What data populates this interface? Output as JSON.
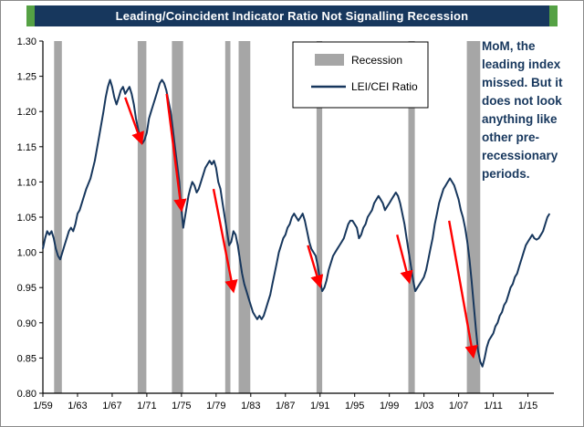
{
  "title": "Leading/Coincident Indicator Ratio Not Signalling Recession",
  "colors": {
    "title_bg": "#17375D",
    "title_accent": "#55A144",
    "title_text": "#FFFFFF",
    "line": "#17375D",
    "recession": "#A6A6A6",
    "arrow": "#FF0000",
    "axis": "#000000",
    "annotation_text": "#17375D"
  },
  "annotation": {
    "text": "MoM, the leading index missed. But it does not look anything like other pre-recessionary periods.",
    "lines": [
      "MoM, the",
      "leading index",
      "missed. But it",
      "does not look",
      "anything like",
      "other pre-",
      "recessionary",
      "periods."
    ]
  },
  "chart_data": {
    "type": "line",
    "title": "Leading/Coincident Indicator Ratio Not Signalling Recession",
    "xlabel": "",
    "ylabel": "",
    "xlim": [
      1959,
      2018
    ],
    "ylim": [
      0.8,
      1.3
    ],
    "grid": false,
    "legend_position": "upper center",
    "y_ticks": [
      0.8,
      0.85,
      0.9,
      0.95,
      1.0,
      1.05,
      1.1,
      1.15,
      1.2,
      1.25,
      1.3
    ],
    "x_ticks": [
      [
        1959,
        "1/59"
      ],
      [
        1963,
        "1/63"
      ],
      [
        1967,
        "1/67"
      ],
      [
        1971,
        "1/71"
      ],
      [
        1975,
        "1/75"
      ],
      [
        1979,
        "1/79"
      ],
      [
        1983,
        "1/83"
      ],
      [
        1987,
        "1/87"
      ],
      [
        1991,
        "1/91"
      ],
      [
        1995,
        "1/95"
      ],
      [
        1999,
        "1/99"
      ],
      [
        2003,
        "1/03"
      ],
      [
        2007,
        "1/07"
      ],
      [
        2011,
        "1/11"
      ],
      [
        2015,
        "1/15"
      ]
    ],
    "legend": [
      {
        "label": "Recession",
        "type": "area",
        "color": "#A6A6A6"
      },
      {
        "label": "LEI/CEI Ratio",
        "type": "line",
        "color": "#17375D"
      }
    ],
    "recessions": [
      [
        1960.3,
        1961.2
      ],
      [
        1969.95,
        1970.95
      ],
      [
        1973.9,
        1975.2
      ],
      [
        1980.05,
        1980.65
      ],
      [
        1981.6,
        1982.95
      ],
      [
        1990.6,
        1991.25
      ],
      [
        2001.2,
        2001.95
      ],
      [
        2007.95,
        2009.5
      ]
    ],
    "arrows": [
      {
        "from": [
          1968.5,
          1.22
        ],
        "to": [
          1970.4,
          1.155
        ]
      },
      {
        "from": [
          1973.3,
          1.225
        ],
        "to": [
          1975.0,
          1.06
        ]
      },
      {
        "from": [
          1978.7,
          1.09
        ],
        "to": [
          1981.0,
          0.945
        ]
      },
      {
        "from": [
          1989.6,
          1.01
        ],
        "to": [
          1991.0,
          0.952
        ]
      },
      {
        "from": [
          1999.9,
          1.025
        ],
        "to": [
          2001.3,
          0.958
        ]
      },
      {
        "from": [
          2005.9,
          1.045
        ],
        "to": [
          2008.7,
          0.852
        ]
      }
    ],
    "series": [
      {
        "name": "LEI/CEI Ratio",
        "points": [
          [
            1959.0,
            1.005
          ],
          [
            1959.25,
            1.02
          ],
          [
            1959.5,
            1.03
          ],
          [
            1959.75,
            1.025
          ],
          [
            1960.0,
            1.03
          ],
          [
            1960.25,
            1.02
          ],
          [
            1960.5,
            1.005
          ],
          [
            1960.75,
            0.995
          ],
          [
            1961.0,
            0.99
          ],
          [
            1961.25,
            1.0
          ],
          [
            1961.5,
            1.01
          ],
          [
            1961.75,
            1.02
          ],
          [
            1962.0,
            1.03
          ],
          [
            1962.25,
            1.035
          ],
          [
            1962.5,
            1.03
          ],
          [
            1962.75,
            1.04
          ],
          [
            1963.0,
            1.055
          ],
          [
            1963.25,
            1.06
          ],
          [
            1963.5,
            1.07
          ],
          [
            1964.0,
            1.09
          ],
          [
            1964.5,
            1.105
          ],
          [
            1965.0,
            1.13
          ],
          [
            1965.5,
            1.165
          ],
          [
            1966.0,
            1.2
          ],
          [
            1966.25,
            1.22
          ],
          [
            1966.5,
            1.235
          ],
          [
            1966.75,
            1.245
          ],
          [
            1967.0,
            1.235
          ],
          [
            1967.25,
            1.22
          ],
          [
            1967.5,
            1.21
          ],
          [
            1967.75,
            1.22
          ],
          [
            1968.0,
            1.23
          ],
          [
            1968.25,
            1.235
          ],
          [
            1968.5,
            1.225
          ],
          [
            1968.75,
            1.23
          ],
          [
            1969.0,
            1.235
          ],
          [
            1969.25,
            1.225
          ],
          [
            1969.5,
            1.21
          ],
          [
            1969.75,
            1.19
          ],
          [
            1970.0,
            1.175
          ],
          [
            1970.25,
            1.16
          ],
          [
            1970.5,
            1.155
          ],
          [
            1970.75,
            1.16
          ],
          [
            1971.0,
            1.17
          ],
          [
            1971.25,
            1.19
          ],
          [
            1971.5,
            1.2
          ],
          [
            1971.75,
            1.21
          ],
          [
            1972.0,
            1.22
          ],
          [
            1972.25,
            1.23
          ],
          [
            1972.5,
            1.24
          ],
          [
            1972.75,
            1.245
          ],
          [
            1973.0,
            1.24
          ],
          [
            1973.25,
            1.23
          ],
          [
            1973.5,
            1.215
          ],
          [
            1973.75,
            1.2
          ],
          [
            1974.0,
            1.175
          ],
          [
            1974.25,
            1.15
          ],
          [
            1974.5,
            1.125
          ],
          [
            1974.75,
            1.1
          ],
          [
            1975.0,
            1.06
          ],
          [
            1975.2,
            1.035
          ],
          [
            1975.4,
            1.05
          ],
          [
            1975.6,
            1.065
          ],
          [
            1975.8,
            1.08
          ],
          [
            1976.0,
            1.09
          ],
          [
            1976.25,
            1.1
          ],
          [
            1976.5,
            1.095
          ],
          [
            1976.75,
            1.085
          ],
          [
            1977.0,
            1.09
          ],
          [
            1977.25,
            1.1
          ],
          [
            1977.5,
            1.11
          ],
          [
            1977.75,
            1.12
          ],
          [
            1978.0,
            1.125
          ],
          [
            1978.25,
            1.13
          ],
          [
            1978.5,
            1.125
          ],
          [
            1978.75,
            1.13
          ],
          [
            1979.0,
            1.12
          ],
          [
            1979.25,
            1.1
          ],
          [
            1979.5,
            1.09
          ],
          [
            1979.75,
            1.07
          ],
          [
            1980.0,
            1.05
          ],
          [
            1980.25,
            1.03
          ],
          [
            1980.5,
            1.01
          ],
          [
            1980.75,
            1.015
          ],
          [
            1981.0,
            1.03
          ],
          [
            1981.25,
            1.025
          ],
          [
            1981.5,
            1.01
          ],
          [
            1981.75,
            0.99
          ],
          [
            1982.0,
            0.97
          ],
          [
            1982.25,
            0.955
          ],
          [
            1982.5,
            0.945
          ],
          [
            1982.75,
            0.935
          ],
          [
            1983.0,
            0.925
          ],
          [
            1983.25,
            0.915
          ],
          [
            1983.5,
            0.91
          ],
          [
            1983.75,
            0.905
          ],
          [
            1984.0,
            0.91
          ],
          [
            1984.25,
            0.905
          ],
          [
            1984.5,
            0.91
          ],
          [
            1984.75,
            0.92
          ],
          [
            1985.0,
            0.93
          ],
          [
            1985.25,
            0.94
          ],
          [
            1985.5,
            0.955
          ],
          [
            1985.75,
            0.97
          ],
          [
            1986.0,
            0.985
          ],
          [
            1986.25,
            1.0
          ],
          [
            1986.5,
            1.01
          ],
          [
            1986.75,
            1.02
          ],
          [
            1987.0,
            1.025
          ],
          [
            1987.25,
            1.035
          ],
          [
            1987.5,
            1.04
          ],
          [
            1987.75,
            1.05
          ],
          [
            1988.0,
            1.055
          ],
          [
            1988.25,
            1.05
          ],
          [
            1988.5,
            1.045
          ],
          [
            1988.75,
            1.05
          ],
          [
            1989.0,
            1.055
          ],
          [
            1989.25,
            1.045
          ],
          [
            1989.5,
            1.03
          ],
          [
            1989.75,
            1.015
          ],
          [
            1990.0,
            1.005
          ],
          [
            1990.25,
            1.0
          ],
          [
            1990.5,
            0.995
          ],
          [
            1990.75,
            0.98
          ],
          [
            1991.0,
            0.96
          ],
          [
            1991.25,
            0.945
          ],
          [
            1991.5,
            0.95
          ],
          [
            1991.75,
            0.96
          ],
          [
            1992.0,
            0.975
          ],
          [
            1992.25,
            0.985
          ],
          [
            1992.5,
            0.995
          ],
          [
            1992.75,
            1.0
          ],
          [
            1993.0,
            1.005
          ],
          [
            1993.25,
            1.01
          ],
          [
            1993.5,
            1.015
          ],
          [
            1993.75,
            1.02
          ],
          [
            1994.0,
            1.03
          ],
          [
            1994.25,
            1.04
          ],
          [
            1994.5,
            1.045
          ],
          [
            1994.75,
            1.045
          ],
          [
            1995.0,
            1.04
          ],
          [
            1995.25,
            1.035
          ],
          [
            1995.5,
            1.02
          ],
          [
            1995.75,
            1.025
          ],
          [
            1996.0,
            1.035
          ],
          [
            1996.25,
            1.04
          ],
          [
            1996.5,
            1.05
          ],
          [
            1996.75,
            1.055
          ],
          [
            1997.0,
            1.06
          ],
          [
            1997.25,
            1.07
          ],
          [
            1997.5,
            1.075
          ],
          [
            1997.75,
            1.08
          ],
          [
            1998.0,
            1.075
          ],
          [
            1998.25,
            1.07
          ],
          [
            1998.5,
            1.06
          ],
          [
            1998.75,
            1.065
          ],
          [
            1999.0,
            1.07
          ],
          [
            1999.25,
            1.075
          ],
          [
            1999.5,
            1.08
          ],
          [
            1999.75,
            1.085
          ],
          [
            2000.0,
            1.08
          ],
          [
            2000.25,
            1.07
          ],
          [
            2000.5,
            1.055
          ],
          [
            2000.75,
            1.04
          ],
          [
            2001.0,
            1.02
          ],
          [
            2001.25,
            1.0
          ],
          [
            2001.5,
            0.98
          ],
          [
            2001.75,
            0.96
          ],
          [
            2002.0,
            0.945
          ],
          [
            2002.25,
            0.95
          ],
          [
            2002.5,
            0.955
          ],
          [
            2002.75,
            0.96
          ],
          [
            2003.0,
            0.965
          ],
          [
            2003.25,
            0.975
          ],
          [
            2003.5,
            0.99
          ],
          [
            2003.75,
            1.005
          ],
          [
            2004.0,
            1.02
          ],
          [
            2004.25,
            1.04
          ],
          [
            2004.5,
            1.055
          ],
          [
            2004.75,
            1.07
          ],
          [
            2005.0,
            1.08
          ],
          [
            2005.25,
            1.09
          ],
          [
            2005.5,
            1.095
          ],
          [
            2005.75,
            1.1
          ],
          [
            2006.0,
            1.105
          ],
          [
            2006.25,
            1.1
          ],
          [
            2006.5,
            1.095
          ],
          [
            2006.75,
            1.085
          ],
          [
            2007.0,
            1.075
          ],
          [
            2007.25,
            1.06
          ],
          [
            2007.5,
            1.05
          ],
          [
            2007.75,
            1.035
          ],
          [
            2008.0,
            1.015
          ],
          [
            2008.25,
            0.99
          ],
          [
            2008.5,
            0.96
          ],
          [
            2008.75,
            0.925
          ],
          [
            2009.0,
            0.89
          ],
          [
            2009.25,
            0.86
          ],
          [
            2009.5,
            0.845
          ],
          [
            2009.75,
            0.838
          ],
          [
            2010.0,
            0.85
          ],
          [
            2010.25,
            0.865
          ],
          [
            2010.5,
            0.875
          ],
          [
            2010.75,
            0.88
          ],
          [
            2011.0,
            0.885
          ],
          [
            2011.25,
            0.895
          ],
          [
            2011.5,
            0.9
          ],
          [
            2011.75,
            0.91
          ],
          [
            2012.0,
            0.915
          ],
          [
            2012.25,
            0.925
          ],
          [
            2012.5,
            0.93
          ],
          [
            2012.75,
            0.94
          ],
          [
            2013.0,
            0.95
          ],
          [
            2013.25,
            0.955
          ],
          [
            2013.5,
            0.965
          ],
          [
            2013.75,
            0.97
          ],
          [
            2014.0,
            0.98
          ],
          [
            2014.25,
            0.99
          ],
          [
            2014.5,
            1.0
          ],
          [
            2014.75,
            1.01
          ],
          [
            2015.0,
            1.015
          ],
          [
            2015.25,
            1.02
          ],
          [
            2015.5,
            1.025
          ],
          [
            2015.75,
            1.02
          ],
          [
            2016.0,
            1.018
          ],
          [
            2016.25,
            1.02
          ],
          [
            2016.5,
            1.025
          ],
          [
            2016.75,
            1.03
          ],
          [
            2017.0,
            1.04
          ],
          [
            2017.25,
            1.05
          ],
          [
            2017.5,
            1.055
          ]
        ]
      }
    ]
  }
}
